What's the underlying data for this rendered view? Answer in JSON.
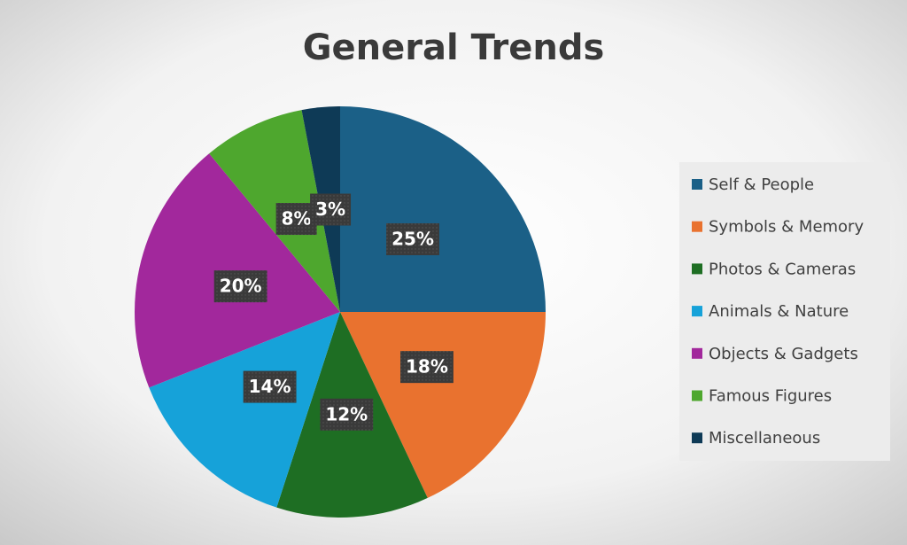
{
  "chart_data": {
    "type": "pie",
    "title": "General Trends",
    "categories": [
      "Self & People",
      "Symbols & Memory",
      "Photos & Cameras",
      "Animals & Nature",
      "Objects & Gadgets",
      "Famous Figures",
      "Miscellaneous"
    ],
    "values": [
      25,
      18,
      12,
      14,
      20,
      8,
      3
    ],
    "value_labels": [
      "25%",
      "18%",
      "12%",
      "14%",
      "20%",
      "8%",
      "3%"
    ],
    "colors": [
      "#1b6087",
      "#e9722f",
      "#1e6e23",
      "#16a2d9",
      "#a2289c",
      "#4ea72e",
      "#0e3a56"
    ],
    "legend": "right"
  }
}
